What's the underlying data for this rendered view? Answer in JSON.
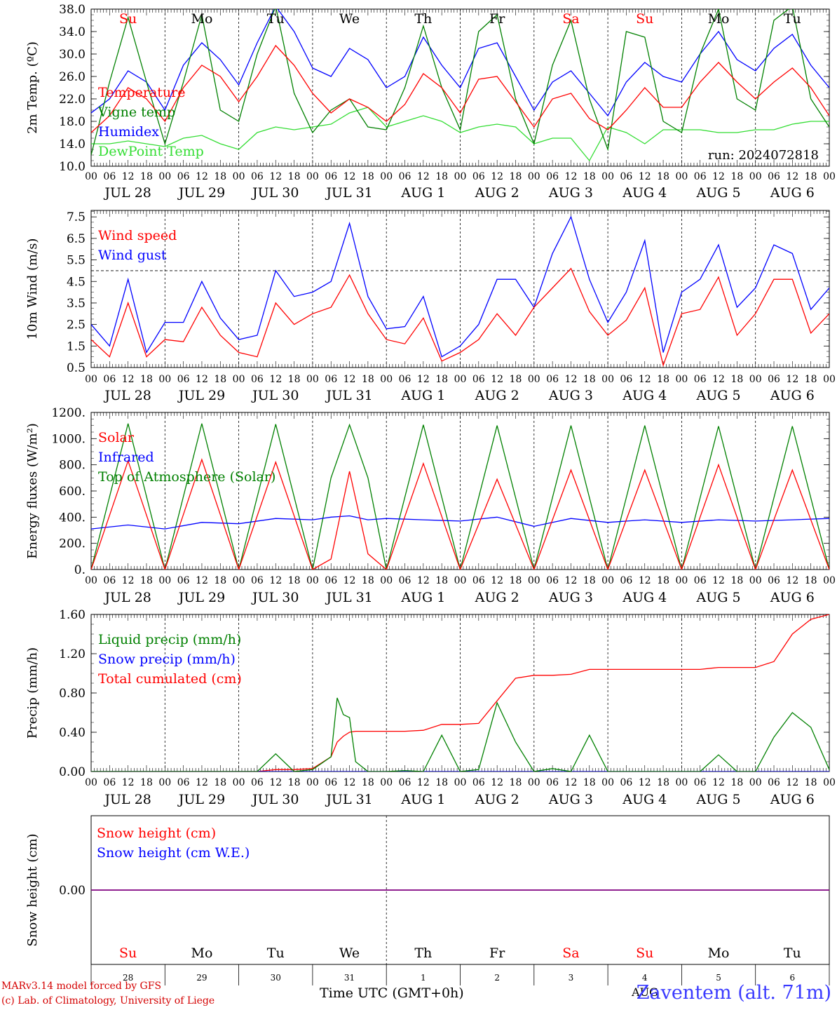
{
  "footer": {
    "model": "MARv3.14 model forced by GFS",
    "copyright": "(c) Lab. of Climatology, University of Liege",
    "time_label": "Time UTC (GMT+0h)",
    "station": "Zaventem (alt. 71m)",
    "overlap_text": "AUG"
  },
  "colors": {
    "red": "#ff0000",
    "green": "#008000",
    "blue": "#0000ff",
    "lightgreen": "#33dd33",
    "purple": "#800080",
    "weekend": "#ff0000",
    "weekday": "#000000"
  },
  "days": {
    "weekday_labels": [
      "Su",
      "Mo",
      "Tu",
      "We",
      "Th",
      "Fr",
      "Sa",
      "Su",
      "Mo",
      "Tu"
    ],
    "weekend_flags": [
      true,
      false,
      false,
      false,
      false,
      false,
      true,
      true,
      false,
      false
    ],
    "date_labels": [
      "JUL 28",
      "JUL 29",
      "JUL 30",
      "JUL 31",
      "AUG  1",
      "AUG  2",
      "AUG  3",
      "AUG  4",
      "AUG  5",
      "AUG  6"
    ],
    "day_numbers": [
      "28",
      "29",
      "30",
      "31",
      "1",
      "2",
      "3",
      "4",
      "5",
      "6"
    ],
    "hour_labels": [
      "00",
      "06",
      "12",
      "18"
    ],
    "final_hour_label": "00"
  },
  "chart_data": [
    {
      "type": "line",
      "id": "temperature",
      "ylabel": "2m Temp. (ºC)",
      "ylim": [
        10,
        38
      ],
      "ytick_labels": [
        "10.0",
        "14.0",
        "18.0",
        "22.0",
        "26.0",
        "30.0",
        "34.0",
        "38.0"
      ],
      "ytick_values": [
        10,
        14,
        18,
        22,
        26,
        30,
        34,
        38
      ],
      "annotation": "run: 2024072818",
      "x_hours": [
        0,
        6,
        12,
        18,
        24,
        30,
        36,
        42,
        48,
        54,
        60,
        66,
        72,
        78,
        84,
        90,
        96,
        102,
        108,
        114,
        120,
        126,
        132,
        138,
        144,
        150,
        156,
        162,
        168,
        174,
        180,
        186,
        192,
        198,
        204,
        210,
        216,
        222,
        228,
        234,
        240
      ],
      "series": [
        {
          "name": "Temperature",
          "color": "#ff0000",
          "values": [
            16,
            19,
            24,
            22,
            18,
            24,
            28,
            26,
            21.5,
            26,
            31.5,
            28,
            23,
            19.5,
            22,
            20.5,
            18,
            21,
            26.5,
            24,
            19.5,
            25.5,
            26,
            21.5,
            17,
            22,
            23,
            18.5,
            16.5,
            20,
            24,
            20.5,
            20.5,
            25,
            28.5,
            25,
            22,
            25,
            27.5,
            24,
            19
          ]
        },
        {
          "name": "Vigne temp",
          "color": "#008000",
          "values": [
            12,
            25,
            36.5,
            25,
            14,
            25,
            37,
            20,
            18,
            30,
            38.5,
            23,
            16,
            20,
            22,
            17,
            16.5,
            24,
            35,
            24,
            16.5,
            34,
            37,
            22,
            14,
            28,
            36,
            22,
            13,
            34,
            33,
            18,
            16,
            30,
            38,
            22,
            20,
            36,
            38.5,
            22,
            17
          ]
        },
        {
          "name": "Humidex",
          "color": "#0000ff",
          "values": [
            19.5,
            22,
            27,
            25,
            20,
            28,
            32,
            29,
            24.5,
            32,
            38.5,
            34,
            27.5,
            26,
            31,
            29,
            24,
            26,
            33,
            28,
            24,
            31,
            32,
            26,
            20,
            25,
            27,
            23,
            19,
            25,
            28.5,
            26,
            25,
            30,
            34,
            29,
            27,
            31,
            33.5,
            28,
            24
          ]
        },
        {
          "name": "DewPoint Temp",
          "color": "#33dd33",
          "values": [
            14,
            14,
            14.5,
            14,
            13.5,
            15,
            15.5,
            14,
            13,
            16,
            17,
            16.5,
            17,
            17.5,
            19.5,
            20.5,
            17,
            18,
            19,
            18,
            16,
            17,
            17.5,
            17,
            14,
            15,
            15,
            11,
            17,
            16,
            14,
            16.5,
            16.5,
            16.5,
            16,
            16,
            16.5,
            16.5,
            17.5,
            18,
            18
          ]
        }
      ]
    },
    {
      "type": "line",
      "id": "wind",
      "ylabel": "10m Wind (m/s)",
      "ylim": [
        0.5,
        7.8
      ],
      "ytick_labels": [
        "0.5",
        "1.5",
        "2.5",
        "3.5",
        "4.5",
        "5.5",
        "6.5",
        "7.5"
      ],
      "ytick_values": [
        0.5,
        1.5,
        2.5,
        3.5,
        4.5,
        5.5,
        6.5,
        7.5
      ],
      "reference_line": 5.0,
      "x_hours": [
        0,
        6,
        12,
        18,
        24,
        30,
        36,
        42,
        48,
        54,
        60,
        66,
        72,
        78,
        84,
        90,
        96,
        102,
        108,
        114,
        120,
        126,
        132,
        138,
        144,
        150,
        156,
        162,
        168,
        174,
        180,
        186,
        192,
        198,
        204,
        210,
        216,
        222,
        228,
        234,
        240
      ],
      "series": [
        {
          "name": "Wind speed",
          "color": "#ff0000",
          "values": [
            1.8,
            1.0,
            3.5,
            1.0,
            1.8,
            1.7,
            3.3,
            2.0,
            1.2,
            1.0,
            3.5,
            2.5,
            3.0,
            3.3,
            4.8,
            3.0,
            1.8,
            1.6,
            2.8,
            0.8,
            1.2,
            1.8,
            3.0,
            2.0,
            3.3,
            4.2,
            5.1,
            3.1,
            2.0,
            2.7,
            4.2,
            0.6,
            3.0,
            3.2,
            4.7,
            2.0,
            3.0,
            4.6,
            4.6,
            2.1,
            3.0
          ]
        },
        {
          "name": "Wind gust",
          "color": "#0000ff",
          "values": [
            2.5,
            1.5,
            4.6,
            1.2,
            2.6,
            2.6,
            4.5,
            2.8,
            1.8,
            2.0,
            5.0,
            3.8,
            4.0,
            4.5,
            7.2,
            3.8,
            2.3,
            2.4,
            3.8,
            1.0,
            1.5,
            2.5,
            4.6,
            4.6,
            3.3,
            5.8,
            7.5,
            4.6,
            2.6,
            4.0,
            6.4,
            1.2,
            4.0,
            4.6,
            6.2,
            3.3,
            4.2,
            6.2,
            5.8,
            3.2,
            4.2
          ]
        }
      ]
    },
    {
      "type": "line",
      "id": "energy",
      "ylabel": "Energy fluxes (W/m²)",
      "ylim": [
        0,
        1200
      ],
      "ytick_labels": [
        "0.",
        "200.",
        "400.",
        "600.",
        "800.",
        "1000.",
        "1200."
      ],
      "ytick_values": [
        0,
        200,
        400,
        600,
        800,
        1000,
        1200
      ],
      "top_of_atmosphere_peak": [
        1115,
        1115,
        1110,
        1105,
        1105,
        1100,
        1100,
        1100,
        1095,
        1095
      ],
      "solar_peak": [
        830,
        840,
        820,
        750,
        810,
        690,
        760,
        760,
        800,
        760
      ],
      "x_hours": [
        0,
        12,
        24,
        36,
        48,
        60,
        72,
        78,
        84,
        90,
        96,
        108,
        120,
        132,
        144,
        156,
        168,
        180,
        192,
        204,
        216,
        228,
        240
      ],
      "series": [
        {
          "name": "Solar",
          "color": "#ff0000",
          "values": [
            0,
            830,
            0,
            840,
            0,
            820,
            0,
            80,
            750,
            120,
            0,
            810,
            0,
            690,
            0,
            760,
            0,
            760,
            0,
            800,
            0,
            760,
            0
          ]
        },
        {
          "name": "Infrared",
          "color": "#0000ff",
          "values": [
            310,
            340,
            310,
            360,
            350,
            390,
            380,
            400,
            410,
            380,
            390,
            380,
            370,
            400,
            330,
            390,
            360,
            380,
            360,
            380,
            370,
            380,
            390
          ]
        },
        {
          "name": "Top of Atmosphere (Solar)",
          "color": "#008000",
          "values": [
            0,
            1115,
            0,
            1115,
            0,
            1110,
            0,
            700,
            1105,
            700,
            0,
            1105,
            0,
            1100,
            0,
            1100,
            0,
            1100,
            0,
            1095,
            0,
            1095,
            0
          ]
        }
      ]
    },
    {
      "type": "line",
      "id": "precip",
      "ylabel": "Precip (mm/h)",
      "ylim": [
        0,
        1.6
      ],
      "ytick_labels": [
        "0.00",
        "0.40",
        "0.80",
        "1.20",
        "1.60"
      ],
      "ytick_values": [
        0,
        0.4,
        0.8,
        1.2,
        1.6
      ],
      "x_hours": [
        0,
        48,
        54,
        60,
        66,
        72,
        78,
        80,
        82,
        84,
        86,
        90,
        96,
        102,
        108,
        114,
        120,
        126,
        132,
        138,
        144,
        150,
        156,
        162,
        168,
        174,
        180,
        186,
        192,
        198,
        204,
        210,
        216,
        222,
        228,
        234,
        240
      ],
      "series": [
        {
          "name": "Liquid precip (mm/h)",
          "color": "#008000",
          "values": [
            0,
            0,
            0,
            0.18,
            0,
            0.02,
            0.15,
            0.75,
            0.58,
            0.55,
            0.1,
            0,
            0,
            0.01,
            0,
            0.37,
            0,
            0.02,
            0.7,
            0.3,
            0,
            0.03,
            0,
            0.37,
            0,
            0,
            0,
            0,
            0,
            0,
            0.17,
            0,
            0,
            0.35,
            0.6,
            0.45,
            0.02
          ]
        },
        {
          "name": "Snow precip (mm/h)",
          "color": "#0000ff",
          "values": [
            0,
            0,
            0,
            0,
            0,
            0,
            0,
            0,
            0,
            0,
            0,
            0,
            0,
            0,
            0,
            0,
            0,
            0,
            0,
            0,
            0,
            0,
            0,
            0,
            0,
            0,
            0,
            0,
            0,
            0,
            0,
            0,
            0,
            0,
            0,
            0,
            0
          ]
        },
        {
          "name": "Total cumulated (cm)",
          "color": "#ff0000",
          "values": [
            0,
            0,
            0,
            0.02,
            0.02,
            0.03,
            0.15,
            0.3,
            0.36,
            0.4,
            0.41,
            0.41,
            0.41,
            0.41,
            0.42,
            0.48,
            0.48,
            0.49,
            0.72,
            0.95,
            0.98,
            0.98,
            0.99,
            1.04,
            1.04,
            1.04,
            1.04,
            1.04,
            1.04,
            1.04,
            1.06,
            1.06,
            1.06,
            1.12,
            1.4,
            1.55,
            1.6
          ]
        }
      ]
    },
    {
      "type": "line",
      "id": "snow",
      "ylabel": "Snow height (cm)",
      "ylim": [
        -1,
        1
      ],
      "ytick_labels": [
        "0.00"
      ],
      "ytick_values": [
        0
      ],
      "x_hours": [
        0,
        240
      ],
      "series": [
        {
          "name": "Snow height (cm)",
          "color": "#ff0000",
          "values": [
            0,
            0
          ]
        },
        {
          "name": "Snow height (cm W.E.)",
          "color": "#0000ff",
          "values": [
            0,
            0
          ]
        }
      ]
    }
  ]
}
